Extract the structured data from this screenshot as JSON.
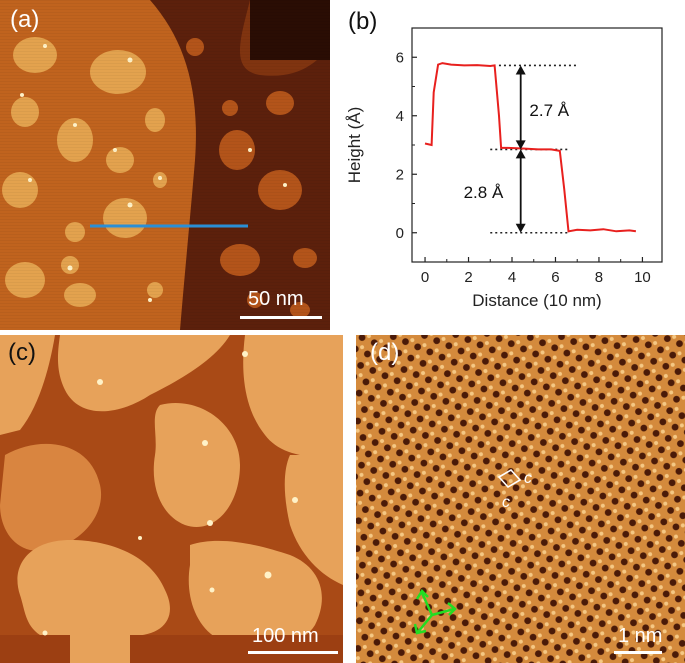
{
  "panels": {
    "a": {
      "label": "(a)",
      "scale_bar": "50 nm"
    },
    "b": {
      "label": "(b)"
    },
    "c": {
      "label": "(c)",
      "scale_bar": "100 nm"
    },
    "d": {
      "label": "(d)",
      "scale_bar": "1 nm",
      "unit_cell_label_1": "c",
      "unit_cell_label_2": "c"
    }
  },
  "colors": {
    "profile_line": "#2a8fd6",
    "trace": "#e8201e",
    "arrows_d": "#22dd22"
  },
  "chart_data": {
    "type": "line",
    "xlabel": "Distance (10 nm)",
    "ylabel": "Height (Å)",
    "xlim": [
      -0.6,
      10.9
    ],
    "ylim": [
      -1,
      7
    ],
    "xticks": [
      0,
      2,
      4,
      6,
      8,
      10
    ],
    "yticks": [
      0,
      2,
      4,
      6
    ],
    "series": [
      {
        "x": [
          0,
          0.3,
          0.4,
          0.6,
          0.8,
          1.2,
          1.8,
          2.4,
          3.0,
          3.2,
          3.4,
          3.5,
          3.8,
          4.5,
          5.2,
          5.8,
          6.2,
          6.4,
          6.6,
          7.0,
          7.6,
          8.2,
          8.8,
          9.4,
          9.7
        ],
        "y": [
          3.05,
          3.0,
          4.8,
          5.75,
          5.8,
          5.75,
          5.72,
          5.73,
          5.7,
          5.72,
          4.0,
          2.9,
          2.9,
          2.88,
          2.85,
          2.85,
          2.8,
          1.5,
          0.05,
          0.1,
          0.08,
          0.12,
          0.05,
          0.08,
          0.05
        ]
      }
    ],
    "annotations": [
      {
        "text": "2.7 Å",
        "x": 4.8,
        "y": 4.2
      },
      {
        "text": "2.8 Å",
        "x": 3.6,
        "y": 1.4
      }
    ],
    "guide_levels": [
      5.72,
      2.85,
      0.0
    ]
  }
}
